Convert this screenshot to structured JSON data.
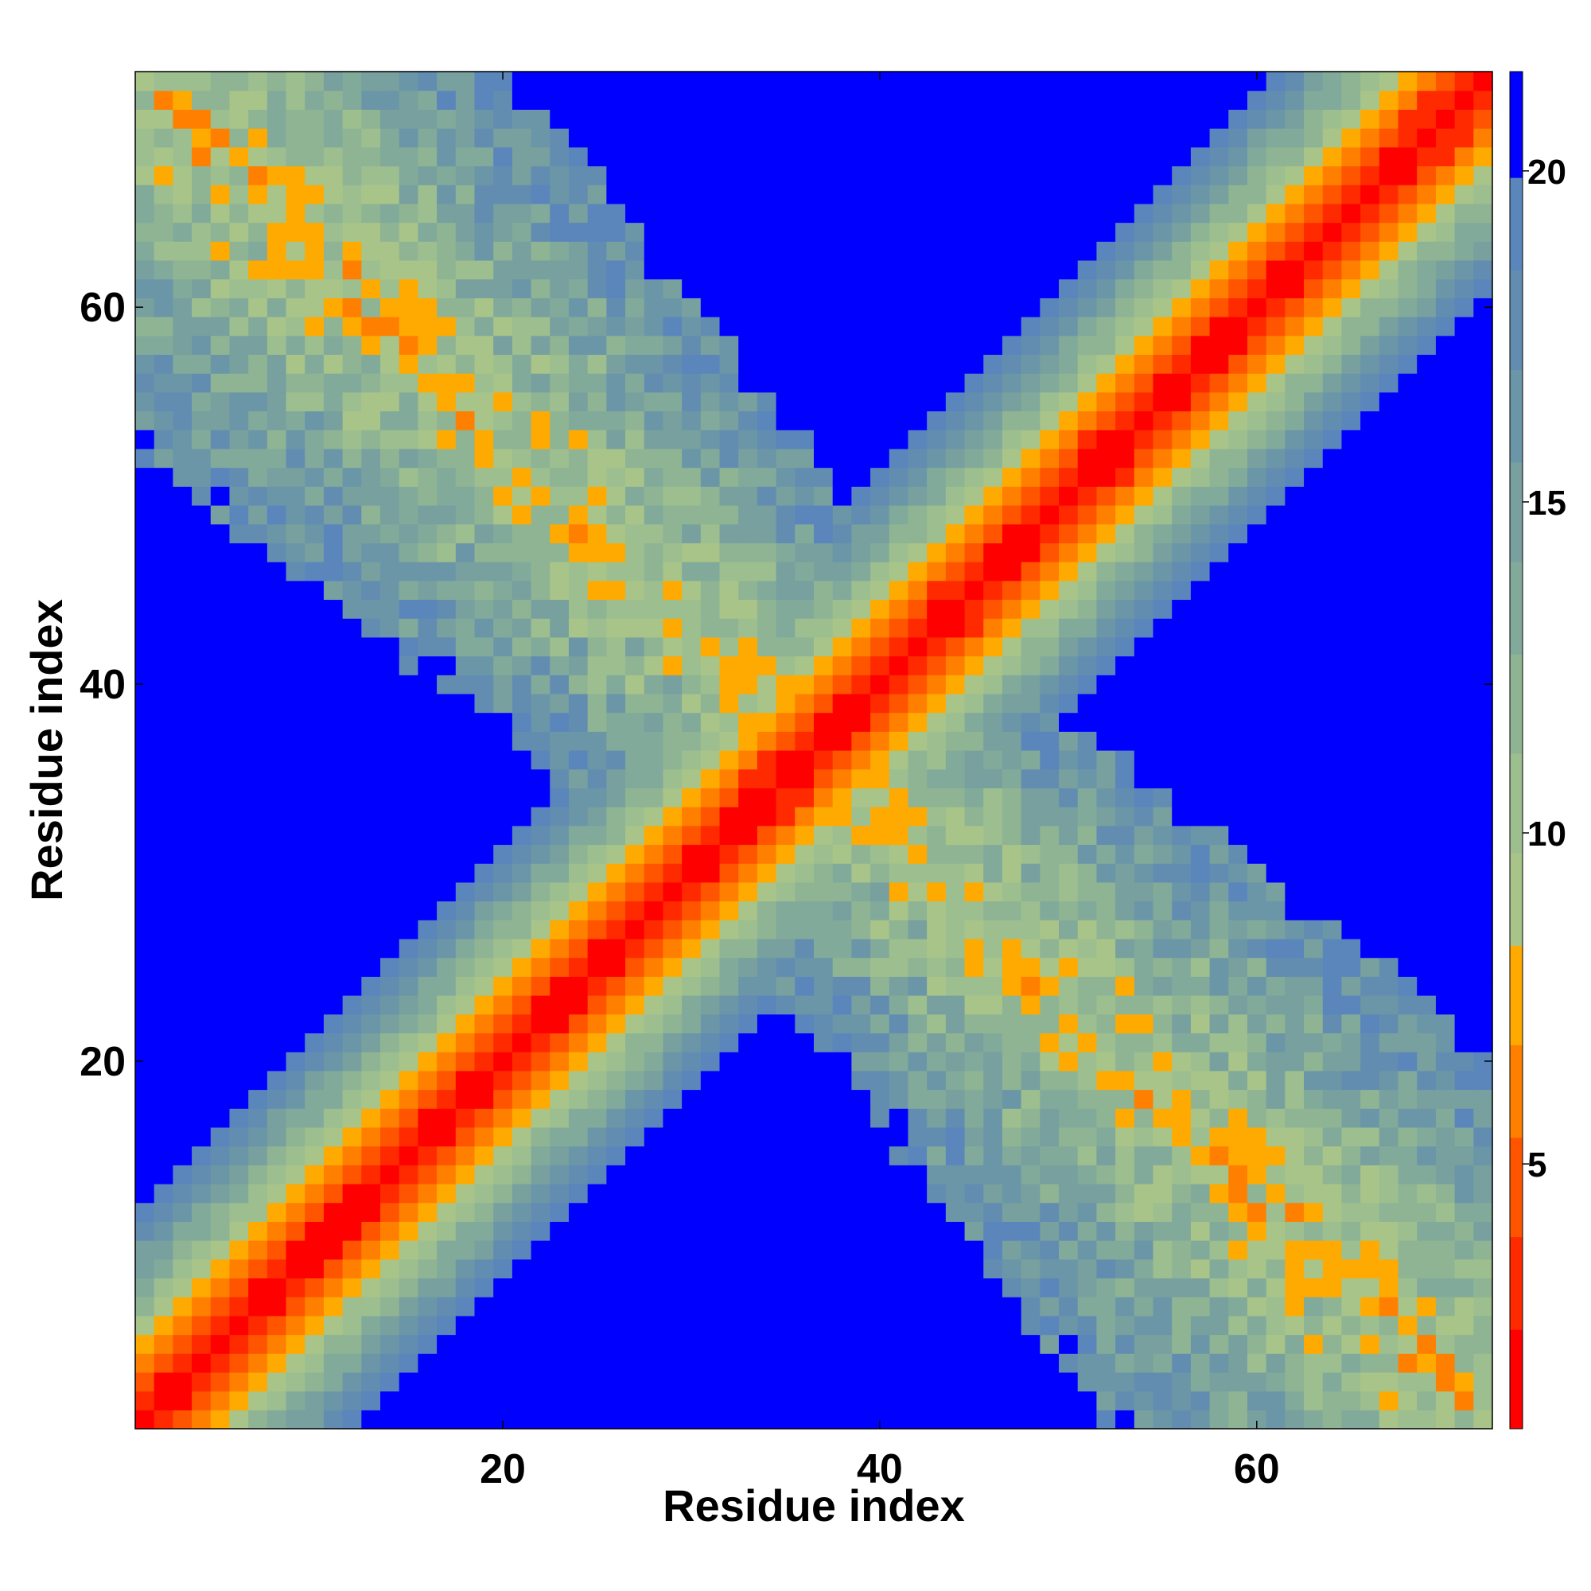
{
  "chart_data": {
    "type": "heatmap",
    "title": "",
    "xlabel": "Residue index",
    "ylabel": "Residue index",
    "x_range": [
      1,
      72
    ],
    "y_range": [
      1,
      72
    ],
    "x_ticks": [
      20,
      40,
      60
    ],
    "y_ticks": [
      20,
      40,
      60
    ],
    "colorbar": {
      "range": [
        1,
        21.5
      ],
      "ticks": [
        5,
        10,
        15,
        20
      ],
      "bins": [
        {
          "from": 1.0,
          "to": 2.5,
          "color": "#ff0000"
        },
        {
          "from": 2.5,
          "to": 3.9,
          "color": "#ff2a00"
        },
        {
          "from": 3.9,
          "to": 5.4,
          "color": "#ff5500"
        },
        {
          "from": 5.4,
          "to": 6.8,
          "color": "#ff8000"
        },
        {
          "from": 6.8,
          "to": 8.3,
          "color": "#ffaa00"
        },
        {
          "from": 8.3,
          "to": 9.7,
          "color": "#a8c489"
        },
        {
          "from": 9.7,
          "to": 11.2,
          "color": "#9dbe8f"
        },
        {
          "from": 11.2,
          "to": 12.7,
          "color": "#8fb494"
        },
        {
          "from": 12.7,
          "to": 14.1,
          "color": "#82aa9a"
        },
        {
          "from": 14.1,
          "to": 15.6,
          "color": "#77a09f"
        },
        {
          "from": 15.6,
          "to": 17.0,
          "color": "#6b96a8"
        },
        {
          "from": 17.0,
          "to": 18.5,
          "color": "#628db1"
        },
        {
          "from": 18.5,
          "to": 19.9,
          "color": "#5a86bb"
        },
        {
          "from": 19.9,
          "to": 21.5,
          "color": "#0000ff"
        }
      ]
    },
    "description_values": {
      "matrix_size": 72,
      "main_diagonal_value": 1,
      "cross_diagonal_band": "symmetric contact band along i + j ≈ 73",
      "background_value": 21
    }
  },
  "labels": {
    "xlabel": "Residue index",
    "ylabel": "Residue index",
    "x_ticks": [
      "20",
      "40",
      "60"
    ],
    "y_ticks": [
      "20",
      "40",
      "60"
    ],
    "cbar_ticks": [
      "5",
      "10",
      "15",
      "20"
    ]
  }
}
